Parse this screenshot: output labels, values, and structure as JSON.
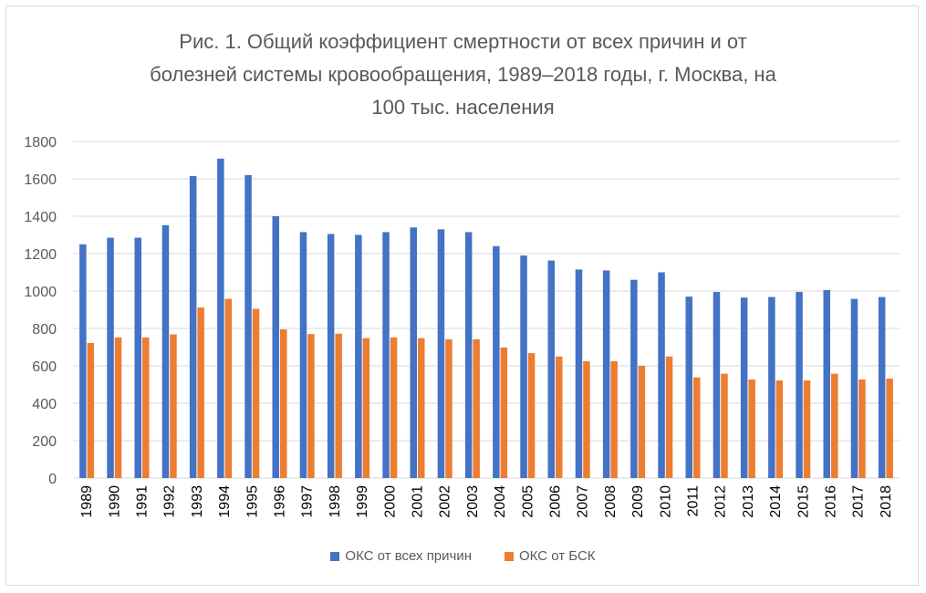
{
  "chart_data": {
    "type": "bar",
    "title_lines": [
      "Рис. 1. Общий коэффициент смертности от всех причин и от",
      "болезней системы кровообращения, 1989–2018 годы, г. Москва, на",
      "100 тыс. населения"
    ],
    "categories": [
      "1989",
      "1990",
      "1991",
      "1992",
      "1993",
      "1994",
      "1995",
      "1996",
      "1997",
      "1998",
      "1999",
      "2000",
      "2001",
      "2002",
      "2003",
      "2004",
      "2005",
      "2006",
      "2007",
      "2008",
      "2009",
      "2010",
      "2011",
      "2012",
      "2013",
      "2014",
      "2015",
      "2016",
      "2017",
      "2018"
    ],
    "series": [
      {
        "name": "ОКС от всех причин",
        "color": "#4472c4",
        "values": [
          1250,
          1285,
          1285,
          1352,
          1615,
          1708,
          1620,
          1400,
          1315,
          1305,
          1300,
          1315,
          1340,
          1330,
          1315,
          1240,
          1190,
          1163,
          1115,
          1110,
          1060,
          1100,
          970,
          995,
          965,
          968,
          995,
          1005,
          958,
          968
        ]
      },
      {
        "name": "ОКС от БСК",
        "color": "#ed7d31",
        "values": [
          722,
          752,
          752,
          768,
          912,
          958,
          905,
          795,
          770,
          772,
          748,
          752,
          748,
          742,
          742,
          698,
          668,
          650,
          625,
          625,
          600,
          650,
          538,
          558,
          527,
          522,
          522,
          558,
          527,
          532
        ]
      }
    ],
    "ylim": [
      0,
      1800
    ],
    "yticks": [
      "0",
      "200",
      "400",
      "600",
      "800",
      "1000",
      "1200",
      "1400",
      "1600",
      "1800"
    ],
    "grid": true,
    "legend_position": "bottom"
  }
}
